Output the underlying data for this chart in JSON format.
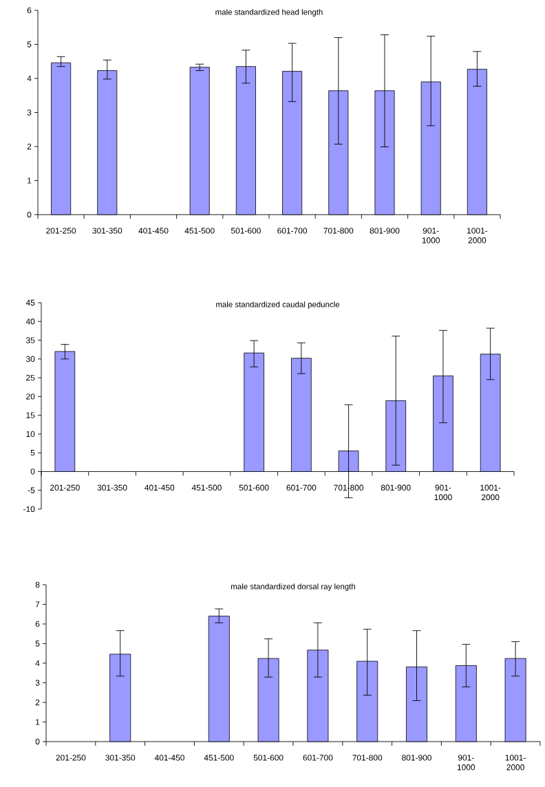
{
  "chart_data": [
    {
      "type": "bar",
      "title": "male standardized head length",
      "categories": [
        "201-250",
        "301-350",
        "401-450",
        "451-500",
        "501-600",
        "601-700",
        "701-800",
        "801-900",
        "901-1000",
        "1001-2000"
      ],
      "values": [
        4.46,
        4.23,
        null,
        4.33,
        4.35,
        4.21,
        3.64,
        3.64,
        3.9,
        4.27
      ],
      "errors": [
        [
          4.35,
          4.64
        ],
        [
          3.98,
          4.54
        ],
        null,
        [
          4.23,
          4.42
        ],
        [
          3.86,
          4.83
        ],
        [
          3.32,
          5.03
        ],
        [
          2.07,
          5.2
        ],
        [
          1.99,
          5.28
        ],
        [
          2.61,
          5.24
        ],
        [
          3.77,
          4.79
        ]
      ],
      "color": "#9999ff",
      "ylim": [
        0,
        6
      ],
      "yticks": [
        0,
        1,
        2,
        3,
        4,
        5,
        6
      ]
    },
    {
      "type": "bar",
      "title": "male standardized caudal peduncle",
      "categories": [
        "201-250",
        "301-350",
        "401-450",
        "451-500",
        "501-600",
        "601-700",
        "701-800",
        "801-900",
        "901-1000",
        "1001-2000"
      ],
      "values": [
        32.0,
        null,
        null,
        null,
        31.6,
        30.2,
        5.5,
        18.9,
        25.5,
        31.3
      ],
      "errors": [
        [
          30.0,
          33.9
        ],
        null,
        null,
        null,
        [
          27.9,
          34.9
        ],
        [
          26.1,
          34.3
        ],
        [
          -7.0,
          17.8
        ],
        [
          1.7,
          36.1
        ],
        [
          13.0,
          37.6
        ],
        [
          24.5,
          38.2
        ]
      ],
      "color": "#9999ff",
      "ylim": [
        -10,
        45
      ],
      "yticks": [
        -10,
        -5,
        0,
        5,
        10,
        15,
        20,
        25,
        30,
        35,
        40,
        45
      ]
    },
    {
      "type": "bar",
      "title": "male standardized dorsal ray length",
      "categories": [
        "201-250",
        "301-350",
        "401-450",
        "451-500",
        "501-600",
        "601-700",
        "701-800",
        "801-900",
        "901-1000",
        "1001-2000"
      ],
      "values": [
        null,
        4.46,
        null,
        6.4,
        4.24,
        4.67,
        4.1,
        3.81,
        3.88,
        4.24
      ],
      "errors": [
        null,
        [
          3.34,
          5.66
        ],
        null,
        [
          6.06,
          6.77
        ],
        [
          3.29,
          5.24
        ],
        [
          3.29,
          6.06
        ],
        [
          2.37,
          5.73
        ],
        [
          2.09,
          5.66
        ],
        [
          2.79,
          4.96
        ],
        [
          3.34,
          5.1
        ]
      ],
      "color": "#9999ff",
      "ylim": [
        0,
        8
      ],
      "yticks": [
        0,
        1,
        2,
        3,
        4,
        5,
        6,
        7,
        8
      ]
    }
  ]
}
